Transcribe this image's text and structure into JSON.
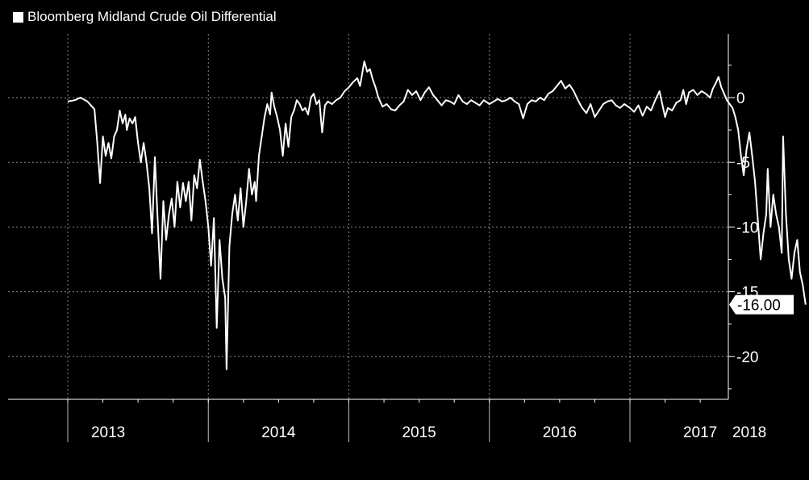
{
  "chart_data": {
    "type": "line",
    "title": "",
    "xlabel": "",
    "ylabel": "",
    "legend": {
      "placement": "top-left"
    },
    "grid": true,
    "xlim": [
      2013.0,
      2018.45
    ],
    "ylim": [
      -23.5,
      5
    ],
    "y_ticks": [
      0,
      -5,
      -10,
      -15,
      -20
    ],
    "y_tick_labels": [
      "0",
      "-5",
      "-10",
      "-15",
      "-20"
    ],
    "x_ticks": [
      2013,
      2014,
      2015,
      2016,
      2017,
      2018
    ],
    "x_tick_labels": [
      "2013",
      "2014",
      "2015",
      "2016",
      "2017",
      "2018"
    ],
    "last_value_label": "-16.00",
    "colors": {
      "background": "#000000",
      "line": "#ffffff",
      "grid": "#8a8a8a"
    },
    "series": [
      {
        "name": "Bloomberg Midland Crude Oil Differential",
        "points": [
          [
            2013.0,
            -0.3
          ],
          [
            2013.05,
            -0.2
          ],
          [
            2013.09,
            0.0
          ],
          [
            2013.14,
            -0.3
          ],
          [
            2013.19,
            -0.9
          ],
          [
            2013.21,
            -3.5
          ],
          [
            2013.23,
            -6.6
          ],
          [
            2013.25,
            -3.0
          ],
          [
            2013.27,
            -4.5
          ],
          [
            2013.29,
            -3.5
          ],
          [
            2013.31,
            -4.7
          ],
          [
            2013.33,
            -3.0
          ],
          [
            2013.35,
            -2.5
          ],
          [
            2013.37,
            -1.0
          ],
          [
            2013.39,
            -2.0
          ],
          [
            2013.41,
            -1.3
          ],
          [
            2013.42,
            -2.5
          ],
          [
            2013.44,
            -1.6
          ],
          [
            2013.46,
            -2.0
          ],
          [
            2013.48,
            -1.5
          ],
          [
            2013.5,
            -3.5
          ],
          [
            2013.52,
            -5.0
          ],
          [
            2013.54,
            -3.5
          ],
          [
            2013.56,
            -5.0
          ],
          [
            2013.58,
            -7.0
          ],
          [
            2013.6,
            -10.5
          ],
          [
            2013.62,
            -4.6
          ],
          [
            2013.64,
            -9.5
          ],
          [
            2013.66,
            -14.0
          ],
          [
            2013.68,
            -8.0
          ],
          [
            2013.7,
            -11.0
          ],
          [
            2013.72,
            -9.0
          ],
          [
            2013.74,
            -7.8
          ],
          [
            2013.76,
            -10.0
          ],
          [
            2013.78,
            -6.5
          ],
          [
            2013.8,
            -8.5
          ],
          [
            2013.82,
            -6.6
          ],
          [
            2013.84,
            -8.0
          ],
          [
            2013.86,
            -6.5
          ],
          [
            2013.88,
            -9.5
          ],
          [
            2013.9,
            -6.0
          ],
          [
            2013.92,
            -7.0
          ],
          [
            2013.94,
            -4.8
          ],
          [
            2013.96,
            -6.5
          ],
          [
            2013.98,
            -8.0
          ],
          [
            2014.0,
            -10.0
          ],
          [
            2014.02,
            -13.0
          ],
          [
            2014.04,
            -9.3
          ],
          [
            2014.06,
            -17.8
          ],
          [
            2014.08,
            -11.0
          ],
          [
            2014.1,
            -14.0
          ],
          [
            2014.12,
            -15.5
          ],
          [
            2014.13,
            -21.0
          ],
          [
            2014.15,
            -11.5
          ],
          [
            2014.17,
            -9.0
          ],
          [
            2014.19,
            -7.5
          ],
          [
            2014.21,
            -9.5
          ],
          [
            2014.23,
            -7.0
          ],
          [
            2014.25,
            -10.0
          ],
          [
            2014.27,
            -8.0
          ],
          [
            2014.29,
            -5.5
          ],
          [
            2014.31,
            -7.5
          ],
          [
            2014.33,
            -6.5
          ],
          [
            2014.34,
            -8.0
          ],
          [
            2014.36,
            -4.5
          ],
          [
            2014.38,
            -3.0
          ],
          [
            2014.4,
            -1.5
          ],
          [
            2014.42,
            -0.5
          ],
          [
            2014.44,
            -1.3
          ],
          [
            2014.45,
            0.4
          ],
          [
            2014.47,
            -0.7
          ],
          [
            2014.49,
            -1.5
          ],
          [
            2014.51,
            -2.5
          ],
          [
            2014.53,
            -4.5
          ],
          [
            2014.55,
            -2.0
          ],
          [
            2014.57,
            -3.8
          ],
          [
            2014.59,
            -1.5
          ],
          [
            2014.61,
            -1.0
          ],
          [
            2014.63,
            -0.2
          ],
          [
            2014.65,
            -0.5
          ],
          [
            2014.67,
            -1.0
          ],
          [
            2014.69,
            -0.8
          ],
          [
            2014.71,
            -1.3
          ],
          [
            2014.73,
            0.0
          ],
          [
            2014.75,
            0.3
          ],
          [
            2014.77,
            -0.5
          ],
          [
            2014.79,
            -0.2
          ],
          [
            2014.81,
            -2.7
          ],
          [
            2014.83,
            -0.6
          ],
          [
            2014.85,
            -0.3
          ],
          [
            2014.88,
            -0.5
          ],
          [
            2014.91,
            -0.2
          ],
          [
            2014.94,
            0.0
          ],
          [
            2014.97,
            0.5
          ],
          [
            2015.0,
            0.8
          ],
          [
            2015.03,
            1.2
          ],
          [
            2015.06,
            1.5
          ],
          [
            2015.08,
            0.9
          ],
          [
            2015.11,
            2.8
          ],
          [
            2015.13,
            2.0
          ],
          [
            2015.15,
            2.2
          ],
          [
            2015.17,
            1.4
          ],
          [
            2015.19,
            0.8
          ],
          [
            2015.21,
            0.0
          ],
          [
            2015.24,
            -0.7
          ],
          [
            2015.27,
            -0.5
          ],
          [
            2015.3,
            -0.9
          ],
          [
            2015.33,
            -1.0
          ],
          [
            2015.36,
            -0.6
          ],
          [
            2015.39,
            -0.3
          ],
          [
            2015.42,
            0.6
          ],
          [
            2015.45,
            0.2
          ],
          [
            2015.48,
            0.5
          ],
          [
            2015.51,
            -0.2
          ],
          [
            2015.54,
            0.4
          ],
          [
            2015.57,
            0.8
          ],
          [
            2015.6,
            0.2
          ],
          [
            2015.63,
            -0.2
          ],
          [
            2015.66,
            -0.6
          ],
          [
            2015.69,
            -0.2
          ],
          [
            2015.72,
            -0.3
          ],
          [
            2015.75,
            -0.5
          ],
          [
            2015.78,
            0.2
          ],
          [
            2015.81,
            -0.3
          ],
          [
            2015.84,
            -0.5
          ],
          [
            2015.87,
            -0.2
          ],
          [
            2015.9,
            -0.4
          ],
          [
            2015.93,
            -0.6
          ],
          [
            2015.96,
            -0.2
          ],
          [
            2016.0,
            -0.5
          ],
          [
            2016.03,
            -0.3
          ],
          [
            2016.06,
            -0.1
          ],
          [
            2016.09,
            -0.3
          ],
          [
            2016.12,
            -0.2
          ],
          [
            2016.15,
            0.0
          ],
          [
            2016.18,
            -0.3
          ],
          [
            2016.21,
            -0.5
          ],
          [
            2016.24,
            -1.6
          ],
          [
            2016.27,
            -0.5
          ],
          [
            2016.3,
            -0.2
          ],
          [
            2016.33,
            -0.3
          ],
          [
            2016.36,
            0.0
          ],
          [
            2016.39,
            -0.2
          ],
          [
            2016.42,
            0.3
          ],
          [
            2016.45,
            0.5
          ],
          [
            2016.48,
            0.9
          ],
          [
            2016.51,
            1.3
          ],
          [
            2016.54,
            0.7
          ],
          [
            2016.57,
            1.0
          ],
          [
            2016.6,
            0.5
          ],
          [
            2016.63,
            -0.2
          ],
          [
            2016.66,
            -0.8
          ],
          [
            2016.69,
            -1.2
          ],
          [
            2016.72,
            -0.5
          ],
          [
            2016.75,
            -1.5
          ],
          [
            2016.78,
            -1.0
          ],
          [
            2016.81,
            -0.5
          ],
          [
            2016.84,
            -0.3
          ],
          [
            2016.87,
            -0.2
          ],
          [
            2016.9,
            -0.6
          ],
          [
            2016.93,
            -0.8
          ],
          [
            2016.96,
            -0.5
          ],
          [
            2017.0,
            -0.8
          ],
          [
            2017.03,
            -1.1
          ],
          [
            2017.06,
            -0.6
          ],
          [
            2017.09,
            -1.4
          ],
          [
            2017.12,
            -0.7
          ],
          [
            2017.15,
            -1.0
          ],
          [
            2017.18,
            -0.2
          ],
          [
            2017.21,
            0.5
          ],
          [
            2017.23,
            -0.5
          ],
          [
            2017.25,
            -1.5
          ],
          [
            2017.27,
            -0.8
          ],
          [
            2017.3,
            -1.0
          ],
          [
            2017.33,
            -0.4
          ],
          [
            2017.36,
            -0.2
          ],
          [
            2017.38,
            0.6
          ],
          [
            2017.4,
            -0.5
          ],
          [
            2017.42,
            0.4
          ],
          [
            2017.45,
            0.6
          ],
          [
            2017.48,
            0.2
          ],
          [
            2017.51,
            0.5
          ],
          [
            2017.54,
            0.3
          ],
          [
            2017.57,
            0.0
          ],
          [
            2017.59,
            0.7
          ],
          [
            2017.61,
            1.1
          ],
          [
            2017.63,
            1.6
          ],
          [
            2017.65,
            0.8
          ],
          [
            2017.67,
            0.3
          ],
          [
            2017.69,
            -0.2
          ],
          [
            2017.71,
            -0.5
          ],
          [
            2017.73,
            -0.8
          ],
          [
            2017.75,
            -1.5
          ],
          [
            2017.77,
            -2.5
          ],
          [
            2017.79,
            -4.5
          ],
          [
            2017.81,
            -6.0
          ],
          [
            2017.83,
            -4.0
          ],
          [
            2017.85,
            -2.7
          ],
          [
            2017.87,
            -4.5
          ],
          [
            2017.89,
            -6.5
          ],
          [
            2017.91,
            -9.5
          ],
          [
            2017.93,
            -12.5
          ],
          [
            2017.95,
            -10.5
          ],
          [
            2017.97,
            -9.0
          ],
          [
            2017.98,
            -5.5
          ],
          [
            2018.0,
            -10.0
          ],
          [
            2018.02,
            -7.5
          ],
          [
            2018.04,
            -9.0
          ],
          [
            2018.06,
            -10.0
          ],
          [
            2018.08,
            -12.0
          ],
          [
            2018.09,
            -3.0
          ],
          [
            2018.11,
            -9.0
          ],
          [
            2018.13,
            -12.5
          ],
          [
            2018.15,
            -14.0
          ],
          [
            2018.17,
            -12.0
          ],
          [
            2018.19,
            -11.0
          ],
          [
            2018.21,
            -13.5
          ],
          [
            2018.23,
            -14.5
          ],
          [
            2018.25,
            -16.0
          ]
        ]
      }
    ]
  }
}
